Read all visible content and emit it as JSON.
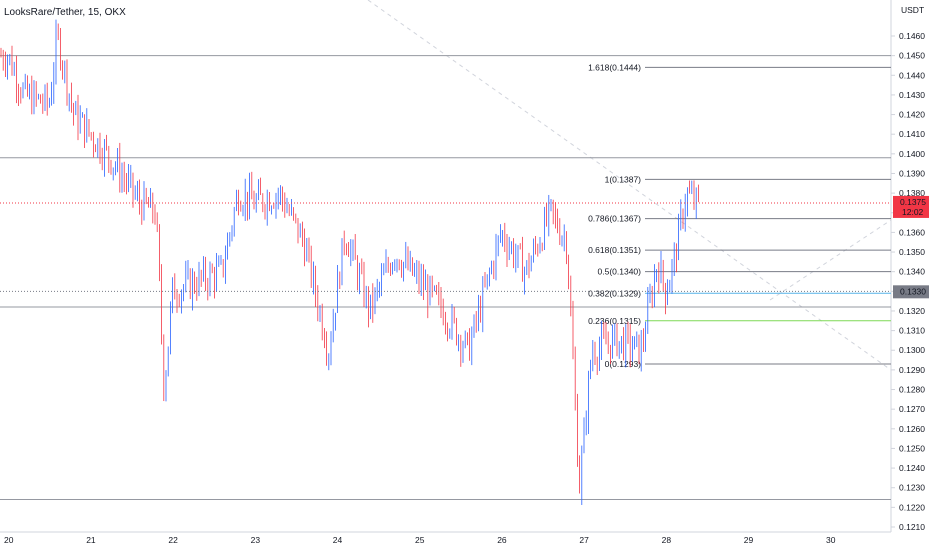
{
  "header": {
    "symbol_title": "LooksRare/Tether, 15, OKX"
  },
  "axis": {
    "currency": "USDT",
    "price_ticks": [
      "0.1460",
      "0.1450",
      "0.1440",
      "0.1430",
      "0.1420",
      "0.1410",
      "0.1400",
      "0.1390",
      "0.1380",
      "0.1370",
      "0.1360",
      "0.1350",
      "0.1340",
      "0.1330",
      "0.1320",
      "0.1310",
      "0.1300",
      "0.1290",
      "0.1280",
      "0.1270",
      "0.1260",
      "0.1250",
      "0.1240",
      "0.1230",
      "0.1220",
      "0.1210"
    ],
    "date_ticks": [
      "20",
      "21",
      "22",
      "23",
      "24",
      "25",
      "26",
      "27",
      "28",
      "29",
      "30"
    ]
  },
  "current_price": {
    "value": "0.1375",
    "countdown": "12:02",
    "color": "#f23645"
  },
  "level_badge": {
    "value": "0.1330",
    "color": "#787b86"
  },
  "fib_levels": [
    {
      "label": "1.618(0.1444)",
      "price": 0.1444,
      "color": "#787b86"
    },
    {
      "label": "1(0.1387)",
      "price": 0.1387,
      "color": "#787b86"
    },
    {
      "label": "0.786(0.1367)",
      "price": 0.1367,
      "color": "#787b86"
    },
    {
      "label": "0.618(0.1351)",
      "price": 0.1351,
      "color": "#787b86"
    },
    {
      "label": "0.5(0.1340)",
      "price": 0.134,
      "color": "#787b86"
    },
    {
      "label": "0.382(0.1329)",
      "price": 0.1329,
      "color": "#56b4e9"
    },
    {
      "label": "0.236(0.1315)",
      "price": 0.1315,
      "color": "#7ed957"
    },
    {
      "label": "0(0.1293)",
      "price": 0.1293,
      "color": "#787b86"
    }
  ],
  "horizontal_lines": [
    0.145,
    0.1398,
    0.1322,
    0.1224
  ],
  "colors": {
    "up": "#2962ff",
    "down": "#f23645",
    "grid": "#9598a1"
  },
  "chart_data": {
    "type": "candlestick",
    "title": "LooksRare/Tether, 15, OKX",
    "ylim": [
      0.1207,
      0.1468
    ],
    "x_categories": [
      "20",
      "21",
      "22",
      "23",
      "24",
      "25",
      "26",
      "27",
      "28",
      "29",
      "30"
    ],
    "approx_close_path": [
      {
        "day": 20.0,
        "price": 0.145
      },
      {
        "day": 20.2,
        "price": 0.143
      },
      {
        "day": 20.5,
        "price": 0.1425
      },
      {
        "day": 20.6,
        "price": 0.146
      },
      {
        "day": 20.8,
        "price": 0.142
      },
      {
        "day": 21.0,
        "price": 0.141
      },
      {
        "day": 21.3,
        "price": 0.1395
      },
      {
        "day": 21.6,
        "price": 0.1375
      },
      {
        "day": 21.8,
        "price": 0.137
      },
      {
        "day": 21.9,
        "price": 0.128
      },
      {
        "day": 22.0,
        "price": 0.133
      },
      {
        "day": 22.3,
        "price": 0.1335
      },
      {
        "day": 22.6,
        "price": 0.134
      },
      {
        "day": 22.8,
        "price": 0.138
      },
      {
        "day": 23.0,
        "price": 0.1375
      },
      {
        "day": 23.3,
        "price": 0.138
      },
      {
        "day": 23.6,
        "price": 0.1355
      },
      {
        "day": 23.9,
        "price": 0.13
      },
      {
        "day": 24.1,
        "price": 0.136
      },
      {
        "day": 24.4,
        "price": 0.132
      },
      {
        "day": 24.7,
        "price": 0.135
      },
      {
        "day": 25.0,
        "price": 0.1335
      },
      {
        "day": 25.3,
        "price": 0.132
      },
      {
        "day": 25.6,
        "price": 0.13
      },
      {
        "day": 25.8,
        "price": 0.133
      },
      {
        "day": 26.0,
        "price": 0.136
      },
      {
        "day": 26.3,
        "price": 0.134
      },
      {
        "day": 26.6,
        "price": 0.137
      },
      {
        "day": 26.8,
        "price": 0.1355
      },
      {
        "day": 26.95,
        "price": 0.123
      },
      {
        "day": 27.1,
        "price": 0.13
      },
      {
        "day": 27.4,
        "price": 0.1305
      },
      {
        "day": 27.7,
        "price": 0.13
      },
      {
        "day": 27.9,
        "price": 0.1345
      },
      {
        "day": 28.0,
        "price": 0.133
      },
      {
        "day": 28.1,
        "price": 0.1345
      },
      {
        "day": 28.25,
        "price": 0.138
      },
      {
        "day": 28.35,
        "price": 0.1375
      }
    ]
  }
}
